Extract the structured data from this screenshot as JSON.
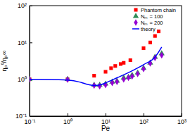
{
  "chart_data": {
    "type": "scatter",
    "log": true,
    "legend": "upper right",
    "xlabel": "Pe",
    "ylabel": "ηₚ⁰/ηₚ∞",
    "xlim": [
      0.1,
      1000
    ],
    "ylim": [
      0.1,
      100
    ],
    "xticks": [
      {
        "value": 0.1,
        "label": "10⁻¹"
      },
      {
        "value": 1,
        "label": "10⁰"
      },
      {
        "value": 10,
        "label": "10¹"
      },
      {
        "value": 100,
        "label": "10²"
      },
      {
        "value": 1000,
        "label": "10³"
      }
    ],
    "yticks": [
      {
        "value": 0.1,
        "label": "10⁻¹"
      },
      {
        "value": 1,
        "label": "10⁰"
      },
      {
        "value": 10,
        "label": "10¹"
      },
      {
        "value": 100,
        "label": "10²"
      }
    ],
    "series": [
      {
        "name": "Phantom chain",
        "type": "scatter",
        "color": "#ff0000",
        "marker": "square",
        "x": [
          0.1,
          1,
          5,
          10,
          14,
          18,
          25,
          30,
          45,
          100,
          150,
          200,
          250
        ],
        "values": [
          1.0,
          1.0,
          1.25,
          1.6,
          2.0,
          2.3,
          2.6,
          2.8,
          3.3,
          7.0,
          10,
          15,
          20
        ]
      },
      {
        "name": "Nₘ = 100",
        "type": "scatter",
        "color": "#2e8b57",
        "marker": "triangle",
        "x": [
          0.1,
          1,
          5,
          7,
          10,
          15,
          20,
          30,
          40,
          50,
          70,
          100,
          150,
          200,
          300
        ],
        "values": [
          1.0,
          1.0,
          0.7,
          0.7,
          0.75,
          0.85,
          0.9,
          1.1,
          1.15,
          1.3,
          1.5,
          2.0,
          2.8,
          4.0,
          5.0
        ]
      },
      {
        "name": "Nₘ = 200",
        "type": "scatter",
        "color": "#9400d3",
        "marker": "diamond",
        "x": [
          0.1,
          1,
          5,
          7,
          10,
          15,
          20,
          30,
          40,
          50,
          70,
          100,
          150,
          200,
          300
        ],
        "values": [
          1.0,
          0.98,
          0.68,
          0.65,
          0.7,
          0.8,
          0.85,
          1.0,
          1.1,
          1.2,
          1.4,
          1.9,
          2.7,
          3.8,
          4.5
        ]
      },
      {
        "name": "theory",
        "type": "line",
        "color": "#0000ff",
        "line_style": "solid",
        "x": [
          0.1,
          0.2,
          0.5,
          1,
          2,
          3,
          5,
          7,
          10,
          20,
          50,
          100,
          200,
          300
        ],
        "values": [
          1.0,
          1.0,
          0.98,
          0.95,
          0.85,
          0.75,
          0.68,
          0.7,
          0.8,
          1.1,
          1.7,
          2.5,
          4.0,
          7.5
        ]
      }
    ]
  }
}
